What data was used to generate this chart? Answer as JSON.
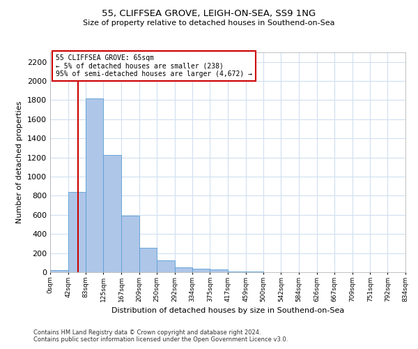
{
  "title_line1": "55, CLIFFSEA GROVE, LEIGH-ON-SEA, SS9 1NG",
  "title_line2": "Size of property relative to detached houses in Southend-on-Sea",
  "xlabel": "Distribution of detached houses by size in Southend-on-Sea",
  "ylabel": "Number of detached properties",
  "footnote1": "Contains HM Land Registry data © Crown copyright and database right 2024.",
  "footnote2": "Contains public sector information licensed under the Open Government Licence v3.0.",
  "annotation_line1": "55 CLIFFSEA GROVE: 65sqm",
  "annotation_line2": "← 5% of detached houses are smaller (238)",
  "annotation_line3": "95% of semi-detached houses are larger (4,672) →",
  "bar_color": "#aec6e8",
  "bar_edge_color": "#5a9fd4",
  "grid_color": "#d0dff0",
  "red_line_color": "#cc0000",
  "annotation_box_color": "#cc0000",
  "bin_labels": [
    "0sqm",
    "42sqm",
    "83sqm",
    "125sqm",
    "167sqm",
    "209sqm",
    "250sqm",
    "292sqm",
    "334sqm",
    "375sqm",
    "417sqm",
    "459sqm",
    "500sqm",
    "542sqm",
    "584sqm",
    "626sqm",
    "667sqm",
    "709sqm",
    "751sqm",
    "792sqm",
    "834sqm"
  ],
  "bar_values": [
    25,
    840,
    1820,
    1230,
    590,
    255,
    125,
    48,
    38,
    28,
    10,
    5,
    0,
    0,
    0,
    0,
    0,
    0,
    0,
    0
  ],
  "red_line_x": 65,
  "ylim_max": 2300,
  "yticks": [
    0,
    200,
    400,
    600,
    800,
    1000,
    1200,
    1400,
    1600,
    1800,
    2000,
    2200
  ],
  "bin_edges": [
    0,
    42,
    83,
    125,
    167,
    209,
    250,
    292,
    334,
    375,
    417,
    459,
    500,
    542,
    584,
    626,
    667,
    709,
    751,
    792,
    834
  ]
}
